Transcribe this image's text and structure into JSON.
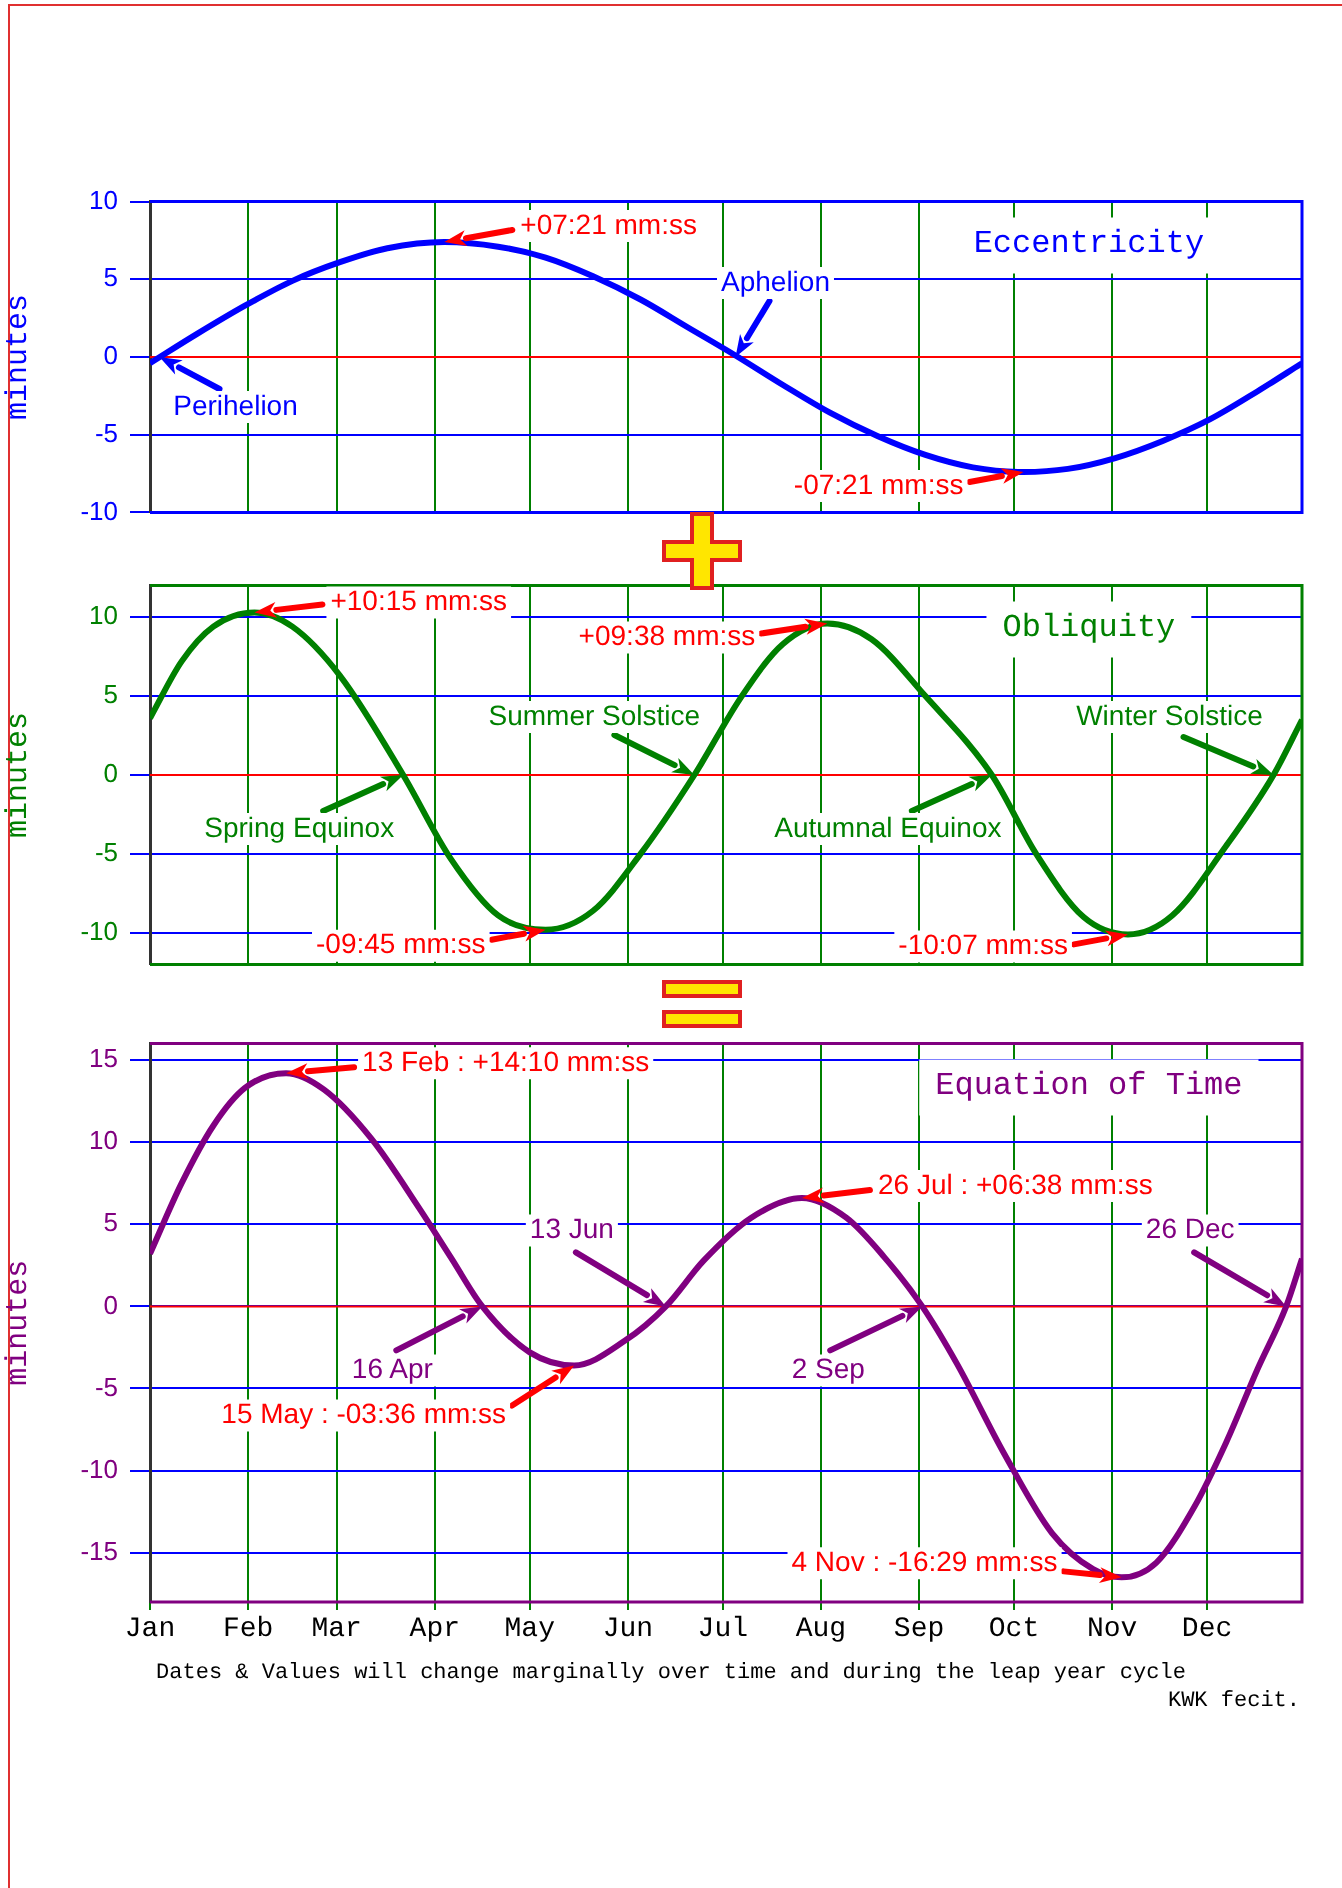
{
  "chart_data": [
    {
      "type": "line",
      "title": "Eccentricity",
      "ylabel": "minutes",
      "x": [
        "--01-01",
        "--01-16",
        "--01-31",
        "--02-15",
        "--03-02",
        "--03-17",
        "--04-04",
        "--04-21",
        "--05-06",
        "--05-21",
        "--06-05",
        "--06-20",
        "--07-05",
        "--07-20",
        "--08-04",
        "--08-19",
        "--09-03",
        "--09-18",
        "--10-04",
        "--10-18",
        "--11-02",
        "--11-17",
        "--12-02",
        "--12-17",
        "--12-31"
      ],
      "series": [
        {
          "color": "#0000ff",
          "values": [
            -0.4,
            1.5,
            3.3,
            4.9,
            6.1,
            7.0,
            7.4,
            7.1,
            6.4,
            5.2,
            3.7,
            1.9,
            0.1,
            -1.8,
            -3.6,
            -5.1,
            -6.3,
            -7.1,
            -7.4,
            -7.2,
            -6.5,
            -5.4,
            -4.0,
            -2.2,
            -0.4
          ]
        }
      ],
      "xlim": [
        "--01-01",
        "--12-31"
      ],
      "xticks": [
        {
          "value": "--01-01",
          "label": null
        },
        {
          "value": "--02-01",
          "label": null
        },
        {
          "value": "--03-01",
          "label": null
        },
        {
          "value": "--04-01",
          "label": null
        },
        {
          "value": "--05-01",
          "label": null
        },
        {
          "value": "--06-01",
          "label": null
        },
        {
          "value": "--07-01",
          "label": null
        },
        {
          "value": "--08-01",
          "label": null
        },
        {
          "value": "--09-01",
          "label": null
        },
        {
          "value": "--10-01",
          "label": null
        },
        {
          "value": "--11-01",
          "label": null
        },
        {
          "value": "--12-01",
          "label": null
        }
      ],
      "ylim": [
        -10,
        10
      ],
      "yticks": [
        -10,
        -5,
        0,
        5,
        10
      ],
      "tick_labels": "y",
      "grid": true,
      "ref_lines": [
        {
          "axis": "y",
          "value": 0,
          "color": "#ff0000"
        }
      ],
      "annotations": [
        {
          "text": "+07:21 mm:ss",
          "x": "--04-04",
          "y": 7.4
        },
        {
          "text": "Aphelion",
          "x": "--07-05",
          "y": 0
        },
        {
          "text": "Perihelion",
          "x": "--01-04",
          "y": 0
        },
        {
          "text": "-07:21 mm:ss",
          "x": "--10-04",
          "y": -7.4
        }
      ]
    },
    {
      "type": "line",
      "title": "Obliquity",
      "ylabel": "minutes",
      "x": [
        "--01-01",
        "--01-11",
        "--01-21",
        "--02-03",
        "--02-15",
        "--03-02",
        "--03-22",
        "--04-06",
        "--04-21",
        "--05-06",
        "--05-21",
        "--06-05",
        "--06-22",
        "--07-07",
        "--07-20",
        "--08-03",
        "--08-17",
        "--09-03",
        "--09-24",
        "--10-08",
        "--10-23",
        "--11-06",
        "--11-20",
        "--12-07",
        "--12-22",
        "--12-31"
      ],
      "series": [
        {
          "color": "#008000",
          "values": [
            3.6,
            7.2,
            9.4,
            10.3,
            9.4,
            6.3,
            0,
            -5.3,
            -8.9,
            -9.8,
            -8.6,
            -5.0,
            0,
            5.0,
            8.3,
            9.6,
            8.6,
            5.0,
            0,
            -5.0,
            -9.0,
            -10.1,
            -8.9,
            -4.5,
            0,
            3.5
          ]
        }
      ],
      "xlim": [
        "--01-01",
        "--12-31"
      ],
      "xticks": [
        {
          "value": "--01-01",
          "label": null
        },
        {
          "value": "--02-01",
          "label": null
        },
        {
          "value": "--03-01",
          "label": null
        },
        {
          "value": "--04-01",
          "label": null
        },
        {
          "value": "--05-01",
          "label": null
        },
        {
          "value": "--06-01",
          "label": null
        },
        {
          "value": "--07-01",
          "label": null
        },
        {
          "value": "--08-01",
          "label": null
        },
        {
          "value": "--09-01",
          "label": null
        },
        {
          "value": "--10-01",
          "label": null
        },
        {
          "value": "--11-01",
          "label": null
        },
        {
          "value": "--12-01",
          "label": null
        }
      ],
      "ylim": [
        -12,
        12
      ],
      "yticks": [
        -10,
        -5,
        0,
        5,
        10
      ],
      "tick_labels": "y",
      "grid": true,
      "ref_lines": [
        {
          "axis": "y",
          "value": 0,
          "color": "#ff0000"
        }
      ],
      "annotations": [
        {
          "text": "+10:15 mm:ss",
          "x": "--02-03",
          "y": 10.3
        },
        {
          "text": "+09:38 mm:ss",
          "x": "--08-03",
          "y": 9.6
        },
        {
          "text": "Summer Solstice",
          "x": "--06-22",
          "y": 0
        },
        {
          "text": "Spring Equinox",
          "x": "--03-22",
          "y": 0
        },
        {
          "text": "Autumnal Equinox",
          "x": "--09-24",
          "y": 0
        },
        {
          "text": "Winter Solstice",
          "x": "--12-22",
          "y": 0
        },
        {
          "text": "-09:45 mm:ss",
          "x": "--05-06",
          "y": -9.8
        },
        {
          "text": "-10:07 mm:ss",
          "x": "--11-06",
          "y": -10.1
        }
      ]
    },
    {
      "type": "line",
      "title": "Equation of Time",
      "ylabel": "minutes",
      "x": [
        "--01-01",
        "--01-11",
        "--01-21",
        "--01-31",
        "--02-13",
        "--02-25",
        "--03-12",
        "--03-27",
        "--04-06",
        "--04-16",
        "--05-01",
        "--05-15",
        "--05-31",
        "--06-13",
        "--06-25",
        "--07-10",
        "--07-26",
        "--08-09",
        "--08-21",
        "--09-02",
        "--09-13",
        "--09-28",
        "--10-13",
        "--10-26",
        "--11-04",
        "--11-15",
        "--11-27",
        "--12-07",
        "--12-17",
        "--12-26",
        "--12-31"
      ],
      "series": [
        {
          "color": "#800080",
          "values": [
            3.2,
            7.5,
            11.0,
            13.3,
            14.2,
            13.2,
            10.2,
            6.0,
            3.0,
            0,
            -2.8,
            -3.6,
            -2.1,
            0,
            2.8,
            5.4,
            6.6,
            5.4,
            3.0,
            0,
            -3.5,
            -9.0,
            -13.8,
            -16.0,
            -16.5,
            -15.6,
            -12.2,
            -8.3,
            -3.8,
            0,
            2.9
          ]
        }
      ],
      "xlim": [
        "--01-01",
        "--12-31"
      ],
      "xticks": [
        {
          "value": "--01-01",
          "label": "Jan"
        },
        {
          "value": "--02-01",
          "label": "Feb"
        },
        {
          "value": "--03-01",
          "label": "Mar"
        },
        {
          "value": "--04-01",
          "label": "Apr"
        },
        {
          "value": "--05-01",
          "label": "May"
        },
        {
          "value": "--06-01",
          "label": "Jun"
        },
        {
          "value": "--07-01",
          "label": "Jul"
        },
        {
          "value": "--08-01",
          "label": "Aug"
        },
        {
          "value": "--09-01",
          "label": "Sep"
        },
        {
          "value": "--10-01",
          "label": "Oct"
        },
        {
          "value": "--11-01",
          "label": "Nov"
        },
        {
          "value": "--12-01",
          "label": "Dec"
        }
      ],
      "ylim": [
        -18,
        16
      ],
      "yticks": [
        -15,
        -10,
        -5,
        0,
        5,
        10,
        15
      ],
      "grid": true,
      "ref_lines": [
        {
          "axis": "y",
          "value": 0,
          "color": "#ff0000"
        }
      ],
      "annotations": [
        {
          "text": "13 Feb : +14:10 mm:ss",
          "x": "--02-13",
          "y": 14.2
        },
        {
          "text": "13 Jun",
          "x": "--06-13",
          "y": 0
        },
        {
          "text": "26 Jul : +06:38 mm:ss",
          "x": "--07-26",
          "y": 6.6
        },
        {
          "text": "26 Dec",
          "x": "--12-26",
          "y": 0
        },
        {
          "text": "16 Apr",
          "x": "--04-16",
          "y": 0
        },
        {
          "text": "2 Sep",
          "x": "--09-02",
          "y": 0
        },
        {
          "text": "15 May : -03:36 mm:ss",
          "x": "--05-15",
          "y": -3.6
        },
        {
          "text": "4 Nov : -16:29 mm:ss",
          "x": "--11-04",
          "y": -16.5
        },
        "Dates & Values will change marginally over time and during the leap year cycle",
        "KWK fecit."
      ]
    }
  ]
}
